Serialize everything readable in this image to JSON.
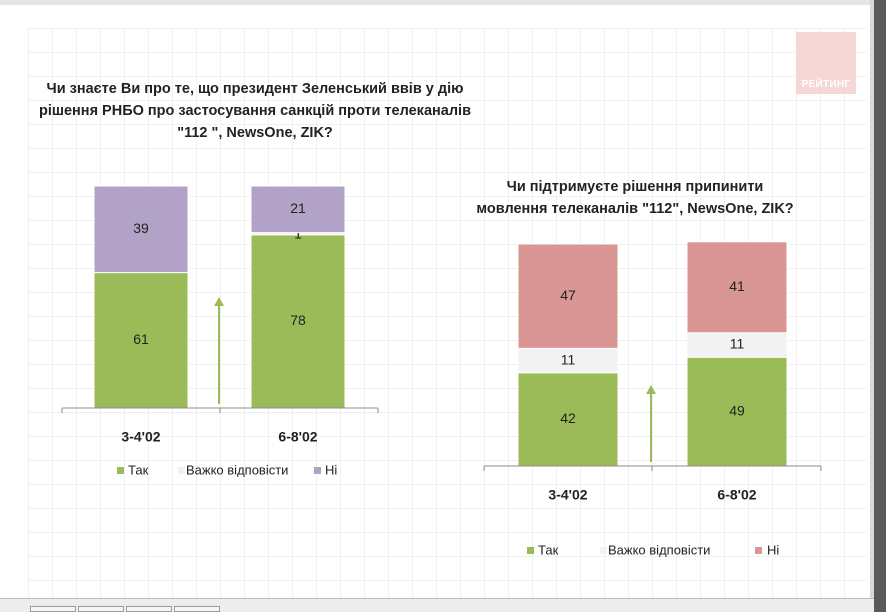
{
  "brand": {
    "logo_text": "РЕЙТИНГ"
  },
  "chart_data": [
    {
      "type": "bar",
      "stacked": true,
      "title": "Чи знаєте Ви про те, що президент Зеленський ввів у дію рішення РНБО про застосування санкцій проти телеканалів \"112 \", NewsOne, ZIK?",
      "categories": [
        "3-4'02",
        "6-8'02"
      ],
      "series": [
        {
          "name": "Так",
          "values": [
            61,
            78
          ],
          "color": "#9bbb59"
        },
        {
          "name": "Важко відповісти",
          "values": [
            0,
            1
          ],
          "color": "#f2f2f2"
        },
        {
          "name": "Ні",
          "values": [
            39,
            21
          ],
          "color": "#b3a2c7"
        }
      ],
      "legend": "bottom",
      "arrow": "up",
      "ylim": [
        0,
        100
      ]
    },
    {
      "type": "bar",
      "stacked": true,
      "title": "Чи підтримуєте рішення припинити мовлення телеканалів \"112\", NewsOne, ZIK?",
      "categories": [
        "3-4'02",
        "6-8'02"
      ],
      "series": [
        {
          "name": "Так",
          "values": [
            42,
            49
          ],
          "color": "#9bbb59"
        },
        {
          "name": "Важко відповісти",
          "values": [
            11,
            11
          ],
          "color": "#f2f2f2"
        },
        {
          "name": "Ні",
          "values": [
            47,
            41
          ],
          "color": "#d99694"
        }
      ],
      "legend": "bottom",
      "arrow": "up",
      "ylim": [
        0,
        100
      ]
    }
  ]
}
